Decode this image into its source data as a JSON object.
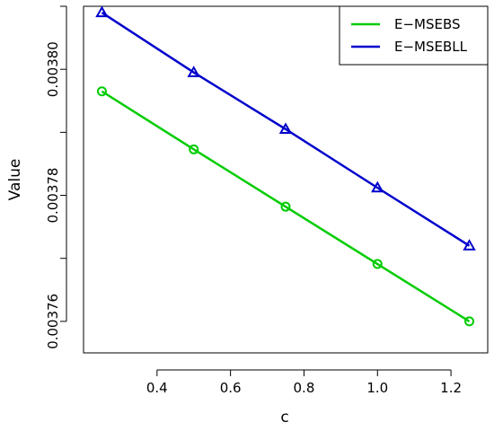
{
  "chart_data": {
    "type": "line",
    "title": "",
    "xlabel": "c",
    "ylabel": "Value",
    "x": [
      0.25,
      0.5,
      0.75,
      1.0,
      1.25
    ],
    "xlim": [
      0.2,
      1.3
    ],
    "ylim": [
      0.003755,
      0.00381
    ],
    "xticks": [
      0.4,
      0.6,
      0.8,
      1.0,
      1.2
    ],
    "xtick_labels": [
      "0.4",
      "0.6",
      "0.8",
      "1.0",
      "1.2"
    ],
    "yticks": [
      0.00376,
      0.00378,
      0.0038
    ],
    "ytick_labels": [
      "0.00376",
      "0.00378",
      "0.00380"
    ],
    "yticks_minor": [
      0.00377,
      0.00379,
      0.00381
    ],
    "grid": false,
    "legend_position": "top-right",
    "series": [
      {
        "name": "E−MSEBS",
        "color": "#00cc00",
        "marker": "circle",
        "values": [
          0.0037965,
          0.0037873,
          0.0037782,
          0.0037691,
          0.00376
        ]
      },
      {
        "name": "E−MSEBLL",
        "color": "#0000cc",
        "marker": "triangle",
        "values": [
          0.003809,
          0.0037995,
          0.0037905,
          0.0037812,
          0.003772
        ]
      }
    ]
  }
}
